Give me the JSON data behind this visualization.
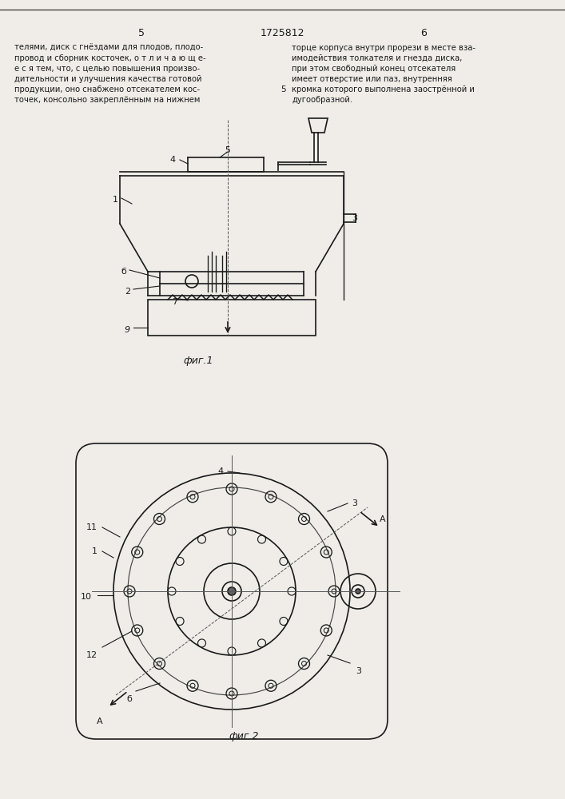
{
  "page_numbers": [
    "5",
    "1725812",
    "6"
  ],
  "text_left": [
    "телями, диск с гнёздами для плодов, плодо-",
    "провод и сборник косточек, о т л и ч а ю щ е-",
    "е с я тем, что, с целью повышения произво-",
    "дительности и улучшения качества готовой",
    "продукции, оно снабжено отсекателем кос-    5",
    "точек, консольно закреплённым на нижнем"
  ],
  "text_right": [
    "торце корпуса внутри прорези в месте вза-",
    "имодействия толкателя и гнезда диска,",
    "при этом свободный конец отсекателя",
    "имеет отверстие или паз, внутренняя",
    "кромка которого выполнена заострённой и",
    "дугообразной."
  ],
  "fig1_caption": "фиг.1",
  "fig2_caption": "фиг.2",
  "bg_color": "#f0ede8",
  "line_color": "#1a1a1a",
  "line_width": 1.2
}
